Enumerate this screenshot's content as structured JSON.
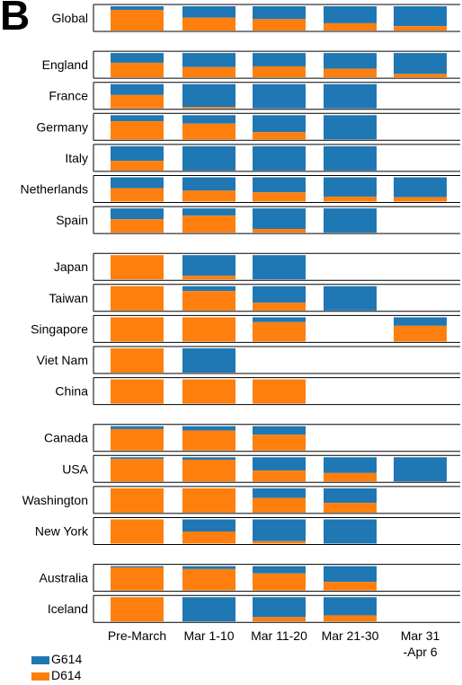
{
  "panel_label": "B",
  "legend": {
    "g614": {
      "label": "G614",
      "color": "#1f77b4"
    },
    "d614": {
      "label": "D614",
      "color": "#ff7f0e"
    }
  },
  "chart_data": {
    "type": "bar",
    "stacked": true,
    "orientation": "100% stacked bars in a grid of regions by time periods",
    "periods": [
      "Pre-March",
      "Mar 1-10",
      "Mar 11-20",
      "Mar 21-30",
      "Mar 31\n-Apr 6"
    ],
    "series_colors": {
      "G614": "#1f77b4",
      "D614": "#ff7f0e"
    },
    "groups": [
      {
        "regions": [
          {
            "name": "Global",
            "g614": [
              0.15,
              0.47,
              0.53,
              0.7,
              0.82
            ]
          }
        ]
      },
      {
        "regions": [
          {
            "name": "England",
            "g614": [
              0.4,
              0.58,
              0.55,
              0.65,
              0.86
            ]
          },
          {
            "name": "France",
            "g614": [
              0.45,
              0.95,
              1.0,
              1.0,
              null
            ]
          },
          {
            "name": "Germany",
            "g614": [
              0.25,
              0.35,
              0.7,
              1.0,
              null
            ]
          },
          {
            "name": "Italy",
            "g614": [
              0.6,
              1.0,
              1.0,
              1.0,
              null
            ]
          },
          {
            "name": "Netherlands",
            "g614": [
              0.45,
              0.55,
              0.62,
              0.8,
              0.82
            ]
          },
          {
            "name": "Spain",
            "g614": [
              0.45,
              0.3,
              0.85,
              1.0,
              null
            ]
          }
        ]
      },
      {
        "regions": [
          {
            "name": "Japan",
            "g614": [
              0.0,
              0.85,
              1.0,
              null,
              null
            ]
          },
          {
            "name": "Taiwan",
            "g614": [
              0.0,
              0.2,
              0.68,
              1.0,
              null
            ]
          },
          {
            "name": "Singapore",
            "g614": [
              0.0,
              0.0,
              0.2,
              null,
              0.35
            ]
          },
          {
            "name": "Viet Nam",
            "g614": [
              0.0,
              1.0,
              null,
              null,
              null
            ]
          },
          {
            "name": "China",
            "g614": [
              0.0,
              0.0,
              0.0,
              null,
              null
            ]
          }
        ]
      },
      {
        "regions": [
          {
            "name": "Canada",
            "g614": [
              0.12,
              0.18,
              0.35,
              null,
              null
            ]
          },
          {
            "name": "USA",
            "g614": [
              0.07,
              0.1,
              0.55,
              0.65,
              1.0
            ]
          },
          {
            "name": "Washington",
            "g614": [
              0.0,
              0.0,
              0.4,
              0.6,
              null
            ]
          },
          {
            "name": "New York",
            "g614": [
              0.0,
              0.5,
              0.9,
              1.0,
              null
            ]
          }
        ]
      },
      {
        "regions": [
          {
            "name": "Australia",
            "g614": [
              0.05,
              0.12,
              0.3,
              0.65,
              null
            ]
          },
          {
            "name": "Iceland",
            "g614": [
              0.0,
              1.0,
              0.82,
              0.75,
              null
            ]
          }
        ]
      }
    ]
  }
}
